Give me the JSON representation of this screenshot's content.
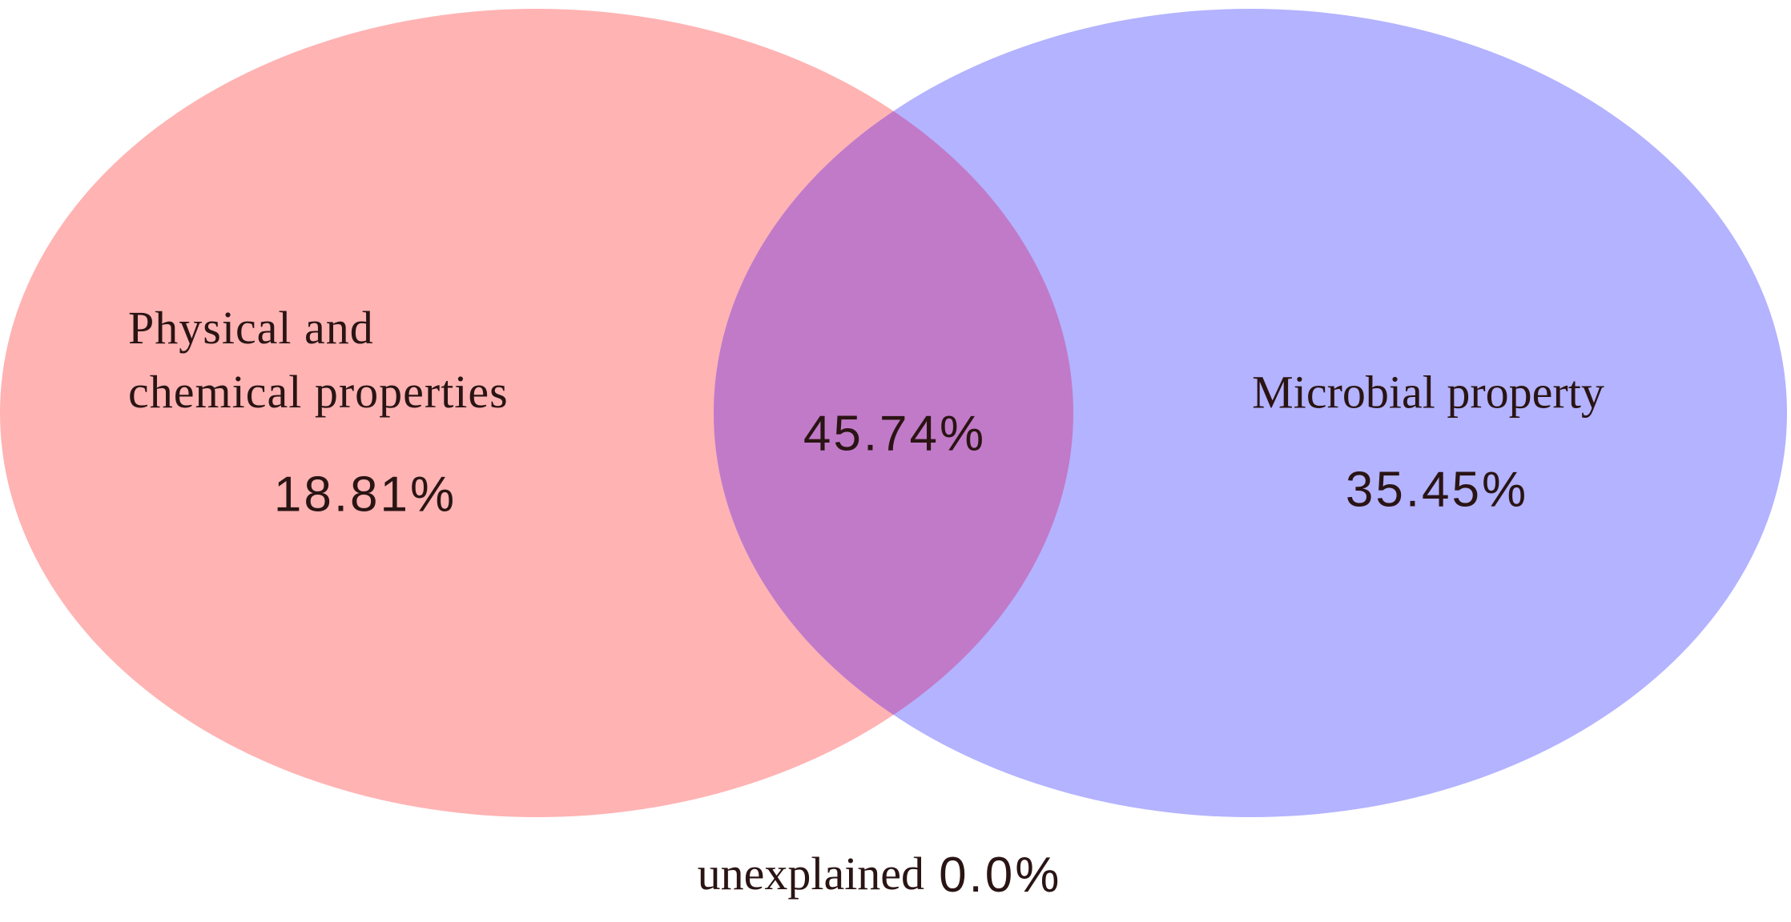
{
  "chart_data": {
    "type": "venn",
    "sets": [
      {
        "name": "Physical and\nchemical properties",
        "color": "#ffb3b3"
      },
      {
        "name": "Microbial property",
        "color": "#b3b3ff"
      }
    ],
    "overlap_color": "#c17ac8",
    "values": [
      18.81,
      45.74,
      35.45
    ],
    "value_labels": [
      "18.81%",
      "45.74%",
      "35.45%"
    ],
    "unexplained": {
      "label": "unexplained",
      "value": 0.0,
      "value_label": "0.0%"
    }
  }
}
